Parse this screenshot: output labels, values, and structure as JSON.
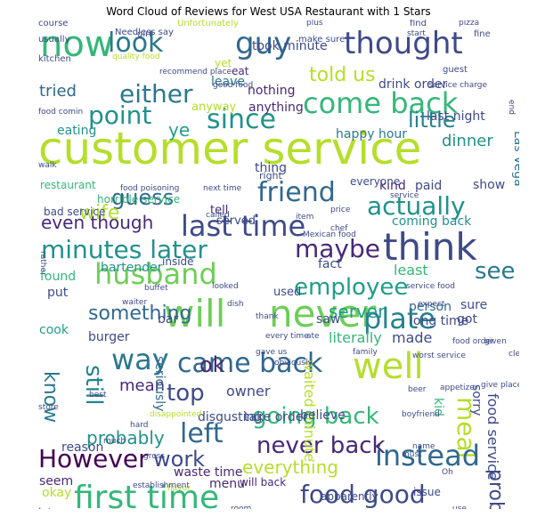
{
  "title": "Word Cloud of Reviews for West USA Restaurant with 1 Stars",
  "words": [
    {
      "text": "customer service",
      "color": "#b5de2b"
    },
    {
      "text": "will",
      "color": "#6ece58"
    },
    {
      "text": "never",
      "color": "#6ece58"
    },
    {
      "text": "think",
      "color": "#3e4a89"
    },
    {
      "text": "now",
      "color": "#35b779"
    },
    {
      "text": "look",
      "color": "#2a788e"
    },
    {
      "text": "guy",
      "color": "#31688e"
    },
    {
      "text": "thought",
      "color": "#3e4a89"
    },
    {
      "text": "either",
      "color": "#2a788e"
    },
    {
      "text": "come back",
      "color": "#35b779"
    },
    {
      "text": "point",
      "color": "#21918c"
    },
    {
      "text": "since",
      "color": "#21918c"
    },
    {
      "text": "well",
      "color": "#b5de2b"
    },
    {
      "text": "husband",
      "color": "#6ece58"
    },
    {
      "text": "maybe",
      "color": "#482878"
    },
    {
      "text": "minutes later",
      "color": "#21918c"
    },
    {
      "text": "last time",
      "color": "#3e4a89"
    },
    {
      "text": "friend",
      "color": "#31688e"
    },
    {
      "text": "guess",
      "color": "#31688e"
    },
    {
      "text": "actually",
      "color": "#21918c"
    },
    {
      "text": "employee",
      "color": "#1f9e89"
    },
    {
      "text": "way",
      "color": "#2a788e"
    },
    {
      "text": "came back",
      "color": "#31688e"
    },
    {
      "text": "plate",
      "color": "#26828e"
    },
    {
      "text": "top",
      "color": "#3e4a89"
    },
    {
      "text": "left",
      "color": "#31688e"
    },
    {
      "text": "going back",
      "color": "#35b779"
    },
    {
      "text": "meal",
      "color": "#b5de2b"
    },
    {
      "text": "However",
      "color": "#440154"
    },
    {
      "text": "first time",
      "color": "#35b779"
    },
    {
      "text": "instead",
      "color": "#31688e"
    },
    {
      "text": "food good",
      "color": "#3e4a89"
    },
    {
      "text": "never back",
      "color": "#482878"
    },
    {
      "text": "still",
      "color": "#26828e"
    },
    {
      "text": "know",
      "color": "#2a788e"
    },
    {
      "text": "work",
      "color": "#3e4a89"
    },
    {
      "text": "problem",
      "color": "#3e4a89"
    },
    {
      "text": "even though",
      "color": "#482878"
    },
    {
      "text": "see",
      "color": "#2a788e"
    },
    {
      "text": "something",
      "color": "#31688e"
    },
    {
      "text": "everything",
      "color": "#b5de2b"
    },
    {
      "text": "wife",
      "color": "#b5de2b"
    },
    {
      "text": "told us",
      "color": "#b5de2b"
    },
    {
      "text": "little",
      "color": "#26828e"
    },
    {
      "text": "tried",
      "color": "#31688e"
    },
    {
      "text": "dinner",
      "color": "#21918c"
    },
    {
      "text": "server",
      "color": "#1f9e89"
    },
    {
      "text": "mean",
      "color": "#482878"
    },
    {
      "text": "ok",
      "color": "#482878"
    },
    {
      "text": "owner",
      "color": "#3e4a89"
    },
    {
      "text": "probably",
      "color": "#21918c"
    },
    {
      "text": "ye",
      "color": "#1f9e89"
    },
    {
      "text": "eating",
      "color": "#21918c"
    },
    {
      "text": "happy hour",
      "color": "#2a788e"
    },
    {
      "text": "last night",
      "color": "#3e4a89"
    },
    {
      "text": "nothing",
      "color": "#482878"
    },
    {
      "text": "anything",
      "color": "#482878"
    },
    {
      "text": "anyway",
      "color": "#b5de2b"
    },
    {
      "text": "took minute",
      "color": "#3e4a89"
    },
    {
      "text": "leave",
      "color": "#2a788e"
    },
    {
      "text": "yet",
      "color": "#b5de2b"
    },
    {
      "text": "eat",
      "color": "#482878"
    },
    {
      "text": "drink order",
      "color": "#3e4a89"
    },
    {
      "text": "Las Vega",
      "color": "#2a788e"
    },
    {
      "text": "kind",
      "color": "#482878"
    },
    {
      "text": "paid",
      "color": "#3e4a89"
    },
    {
      "text": "show",
      "color": "#3e4a89"
    },
    {
      "text": "tell",
      "color": "#482878"
    },
    {
      "text": "served",
      "color": "#3e4a89"
    },
    {
      "text": "coming back",
      "color": "#21918c"
    },
    {
      "text": "found",
      "color": "#35b779"
    },
    {
      "text": "bartender",
      "color": "#21918c"
    },
    {
      "text": "least",
      "color": "#35b779"
    },
    {
      "text": "fact",
      "color": "#3e4a89"
    },
    {
      "text": "another minute",
      "color": "#35b779"
    },
    {
      "text": "person",
      "color": "#31688e"
    },
    {
      "text": "sure",
      "color": "#3e4a89"
    },
    {
      "text": "got",
      "color": "#3e4a89"
    },
    {
      "text": "put",
      "color": "#3e4a89"
    },
    {
      "text": "used",
      "color": "#3e4a89"
    },
    {
      "text": "cook",
      "color": "#1f9e89"
    },
    {
      "text": "burger",
      "color": "#3e4a89"
    },
    {
      "text": "bar",
      "color": "#3e4a89"
    },
    {
      "text": "saw",
      "color": "#3e4a89"
    },
    {
      "text": "literally",
      "color": "#35b779"
    },
    {
      "text": "made",
      "color": "#3e4a89"
    },
    {
      "text": "long time",
      "color": "#3e4a89"
    },
    {
      "text": "seriously",
      "color": "#31688e"
    },
    {
      "text": "waited minute",
      "color": "#b5de2b"
    },
    {
      "text": "food service",
      "color": "#3e4a89"
    },
    {
      "text": "kid",
      "color": "#35b779"
    },
    {
      "text": "sorry",
      "color": "#3e4a89"
    },
    {
      "text": "disgusting",
      "color": "#3e4a89"
    },
    {
      "text": "take order",
      "color": "#3e4a89"
    },
    {
      "text": "believe",
      "color": "#3e4a89"
    },
    {
      "text": "reason",
      "color": "#3e4a89"
    },
    {
      "text": "waste time",
      "color": "#482878"
    },
    {
      "text": "seem",
      "color": "#482878"
    },
    {
      "text": "menu",
      "color": "#482878"
    },
    {
      "text": "will back",
      "color": "#482878"
    },
    {
      "text": "okay",
      "color": "#b5de2b"
    },
    {
      "text": "lot",
      "color": "#3e4a89"
    },
    {
      "text": "staff",
      "color": "#1f9e89"
    },
    {
      "text": "much better",
      "color": "#1f9e89"
    },
    {
      "text": "dessert",
      "color": "#b5de2b"
    },
    {
      "text": "understand",
      "color": "#3e4a89"
    },
    {
      "text": "sandwich",
      "color": "#3e4a89"
    },
    {
      "text": "apparently",
      "color": "#3e4a89"
    },
    {
      "text": "issue",
      "color": "#3e4a89"
    },
    {
      "text": "thing",
      "color": "#3e4a89"
    },
    {
      "text": "right",
      "color": "#3e4a89"
    },
    {
      "text": "restaurant",
      "color": "#35b779"
    },
    {
      "text": "horrible service",
      "color": "#35b779"
    },
    {
      "text": "bad service",
      "color": "#3e4a89"
    },
    {
      "text": "inside",
      "color": "#3e4a89"
    },
    {
      "text": "everyone",
      "color": "#3e4a89"
    },
    {
      "text": "course",
      "color": "#3e4a89"
    },
    {
      "text": "Unfortunately",
      "color": "#b5de2b"
    },
    {
      "text": "Needless say",
      "color": "#3e4a89"
    },
    {
      "text": "girl",
      "color": "#3e4a89"
    },
    {
      "text": "usually",
      "color": "#3e4a89"
    },
    {
      "text": "make sure",
      "color": "#3e4a89"
    },
    {
      "text": "find",
      "color": "#3e4a89"
    },
    {
      "text": "fine",
      "color": "#3e4a89"
    },
    {
      "text": "guest",
      "color": "#3e4a89"
    },
    {
      "text": "kitchen",
      "color": "#3e4a89"
    },
    {
      "text": "quality food",
      "color": "#b5de2b"
    },
    {
      "text": "recommend place",
      "color": "#3e4a89"
    },
    {
      "text": "good food",
      "color": "#3e4a89"
    },
    {
      "text": "food poisoning",
      "color": "#3e4a89"
    },
    {
      "text": "next time",
      "color": "#3e4a89"
    },
    {
      "text": "service",
      "color": "#3e4a89"
    },
    {
      "text": "price",
      "color": "#3e4a89"
    },
    {
      "text": "Mexican food",
      "color": "#3e4a89"
    },
    {
      "text": "buffet",
      "color": "#3e4a89"
    },
    {
      "text": "waiter",
      "color": "#3e4a89"
    },
    {
      "text": "dish",
      "color": "#3e4a89"
    },
    {
      "text": "ate",
      "color": "#3e4a89"
    },
    {
      "text": "expect",
      "color": "#3e4a89"
    },
    {
      "text": "worst service",
      "color": "#3e4a89"
    },
    {
      "text": "gave us",
      "color": "#3e4a89"
    },
    {
      "text": "every time",
      "color": "#3e4a89"
    },
    {
      "text": "service food",
      "color": "#3e4a89"
    },
    {
      "text": "looked",
      "color": "#3e4a89"
    },
    {
      "text": "given",
      "color": "#3e4a89"
    },
    {
      "text": "clearly",
      "color": "#3e4a89"
    },
    {
      "text": "beer",
      "color": "#3e4a89"
    },
    {
      "text": "boyfriend",
      "color": "#3e4a89"
    },
    {
      "text": "name",
      "color": "#3e4a89"
    },
    {
      "text": "must",
      "color": "#3e4a89"
    },
    {
      "text": "Oh",
      "color": "#3e4a89"
    },
    {
      "text": "use",
      "color": "#3e4a89"
    },
    {
      "text": "much",
      "color": "#3e4a89"
    },
    {
      "text": "gross",
      "color": "#3e4a89"
    },
    {
      "text": "flavor",
      "color": "#b5de2b"
    },
    {
      "text": "establishment",
      "color": "#3e4a89"
    },
    {
      "text": "rather",
      "color": "#3e4a89"
    },
    {
      "text": "thank",
      "color": "#3e4a89"
    },
    {
      "text": "family",
      "color": "#3e4a89"
    },
    {
      "text": "called",
      "color": "#3e4a89"
    },
    {
      "text": "item",
      "color": "#3e4a89"
    },
    {
      "text": "chef",
      "color": "#3e4a89"
    },
    {
      "text": "plus",
      "color": "#3e4a89"
    },
    {
      "text": "start",
      "color": "#3e4a89"
    },
    {
      "text": "pizza",
      "color": "#3e4a89"
    },
    {
      "text": "walk",
      "color": "#3e4a89"
    },
    {
      "text": "food comin",
      "color": "#3e4a89"
    },
    {
      "text": "service charge",
      "color": "#3e4a89"
    },
    {
      "text": "end",
      "color": "#3e4a89"
    },
    {
      "text": "best",
      "color": "#3e4a89"
    },
    {
      "text": "hard",
      "color": "#3e4a89"
    },
    {
      "text": "disappointed",
      "color": "#b5de2b"
    },
    {
      "text": "obviously",
      "color": "#3e4a89"
    },
    {
      "text": "appetizer",
      "color": "#3e4a89"
    },
    {
      "text": "give place",
      "color": "#3e4a89"
    },
    {
      "text": "food order",
      "color": "#3e4a89"
    },
    {
      "text": "store",
      "color": "#3e4a89"
    },
    {
      "text": "room",
      "color": "#3e4a89"
    }
  ]
}
